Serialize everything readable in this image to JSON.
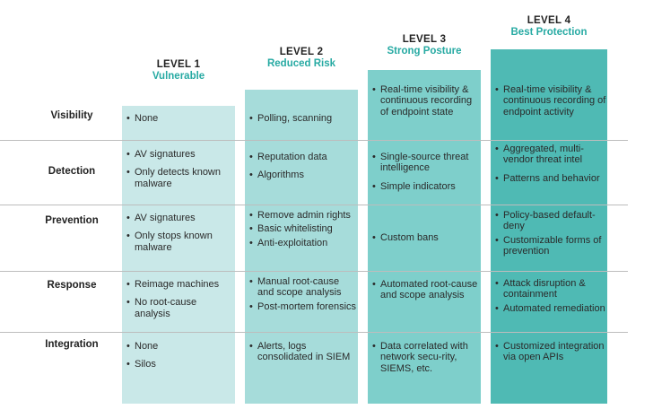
{
  "levels": [
    {
      "level": "LEVEL 1",
      "name": "Vulnerable"
    },
    {
      "level": "LEVEL 2",
      "name": "Reduced Risk"
    },
    {
      "level": "LEVEL 3",
      "name": "Strong Posture"
    },
    {
      "level": "LEVEL 4",
      "name": "Best Protection"
    }
  ],
  "rows": [
    {
      "label": "Visibility",
      "cells": [
        [
          "None"
        ],
        [
          "Polling, scanning"
        ],
        [
          "Real-time visibility & continuous recording of endpoint state"
        ],
        [
          "Real-time visibility & continuous recording of endpoint activity"
        ]
      ]
    },
    {
      "label": "Detection",
      "cells": [
        [
          "AV signatures",
          "Only detects known malware"
        ],
        [
          "Reputation data",
          "Algorithms"
        ],
        [
          "Single-source threat intelligence",
          "Simple indicators"
        ],
        [
          "Aggregated, multi-vendor threat intel",
          "Patterns and behavior"
        ]
      ]
    },
    {
      "label": "Prevention",
      "cells": [
        [
          "AV signatures",
          "Only stops known malware"
        ],
        [
          "Remove admin rights",
          "Basic whitelisting",
          "Anti-exploitation"
        ],
        [
          "Custom bans"
        ],
        [
          "Policy-based default-deny",
          "Customizable forms of prevention"
        ]
      ]
    },
    {
      "label": "Response",
      "cells": [
        [
          "Reimage machines",
          "No root-cause analysis"
        ],
        [
          "Manual root-cause and scope analysis",
          "Post-mortem forensics"
        ],
        [
          "Automated root-cause and scope analysis"
        ],
        [
          "Attack disruption & containment",
          "Automated remediation"
        ]
      ]
    },
    {
      "label": "Integration",
      "cells": [
        [
          "None",
          "Silos"
        ],
        [
          "Alerts, logs consolidated in SIEM"
        ],
        [
          "Data correlated with network secu-rity, SIEMS, etc."
        ],
        [
          "Customized integration via open APIs"
        ]
      ]
    }
  ]
}
